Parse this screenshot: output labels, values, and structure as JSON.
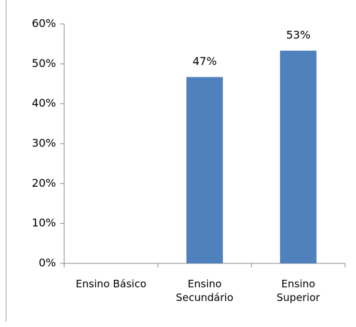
{
  "chart_data": {
    "type": "bar",
    "categories": [
      "Ensino Básico",
      "Ensino Secundário",
      "Ensino Superior"
    ],
    "values": [
      0,
      46.7,
      53.3
    ],
    "value_labels": [
      null,
      "47%",
      "53%"
    ],
    "color": "#4f81bd",
    "ylim": [
      0,
      60
    ],
    "yticks": [
      {
        "value": 0,
        "label": "0%"
      },
      {
        "value": 10,
        "label": "10%"
      },
      {
        "value": 20,
        "label": "20%"
      },
      {
        "value": 30,
        "label": "30%"
      },
      {
        "value": 40,
        "label": "40%"
      },
      {
        "value": 50,
        "label": "50%"
      },
      {
        "value": 60,
        "label": "60%"
      }
    ],
    "grid": false
  }
}
